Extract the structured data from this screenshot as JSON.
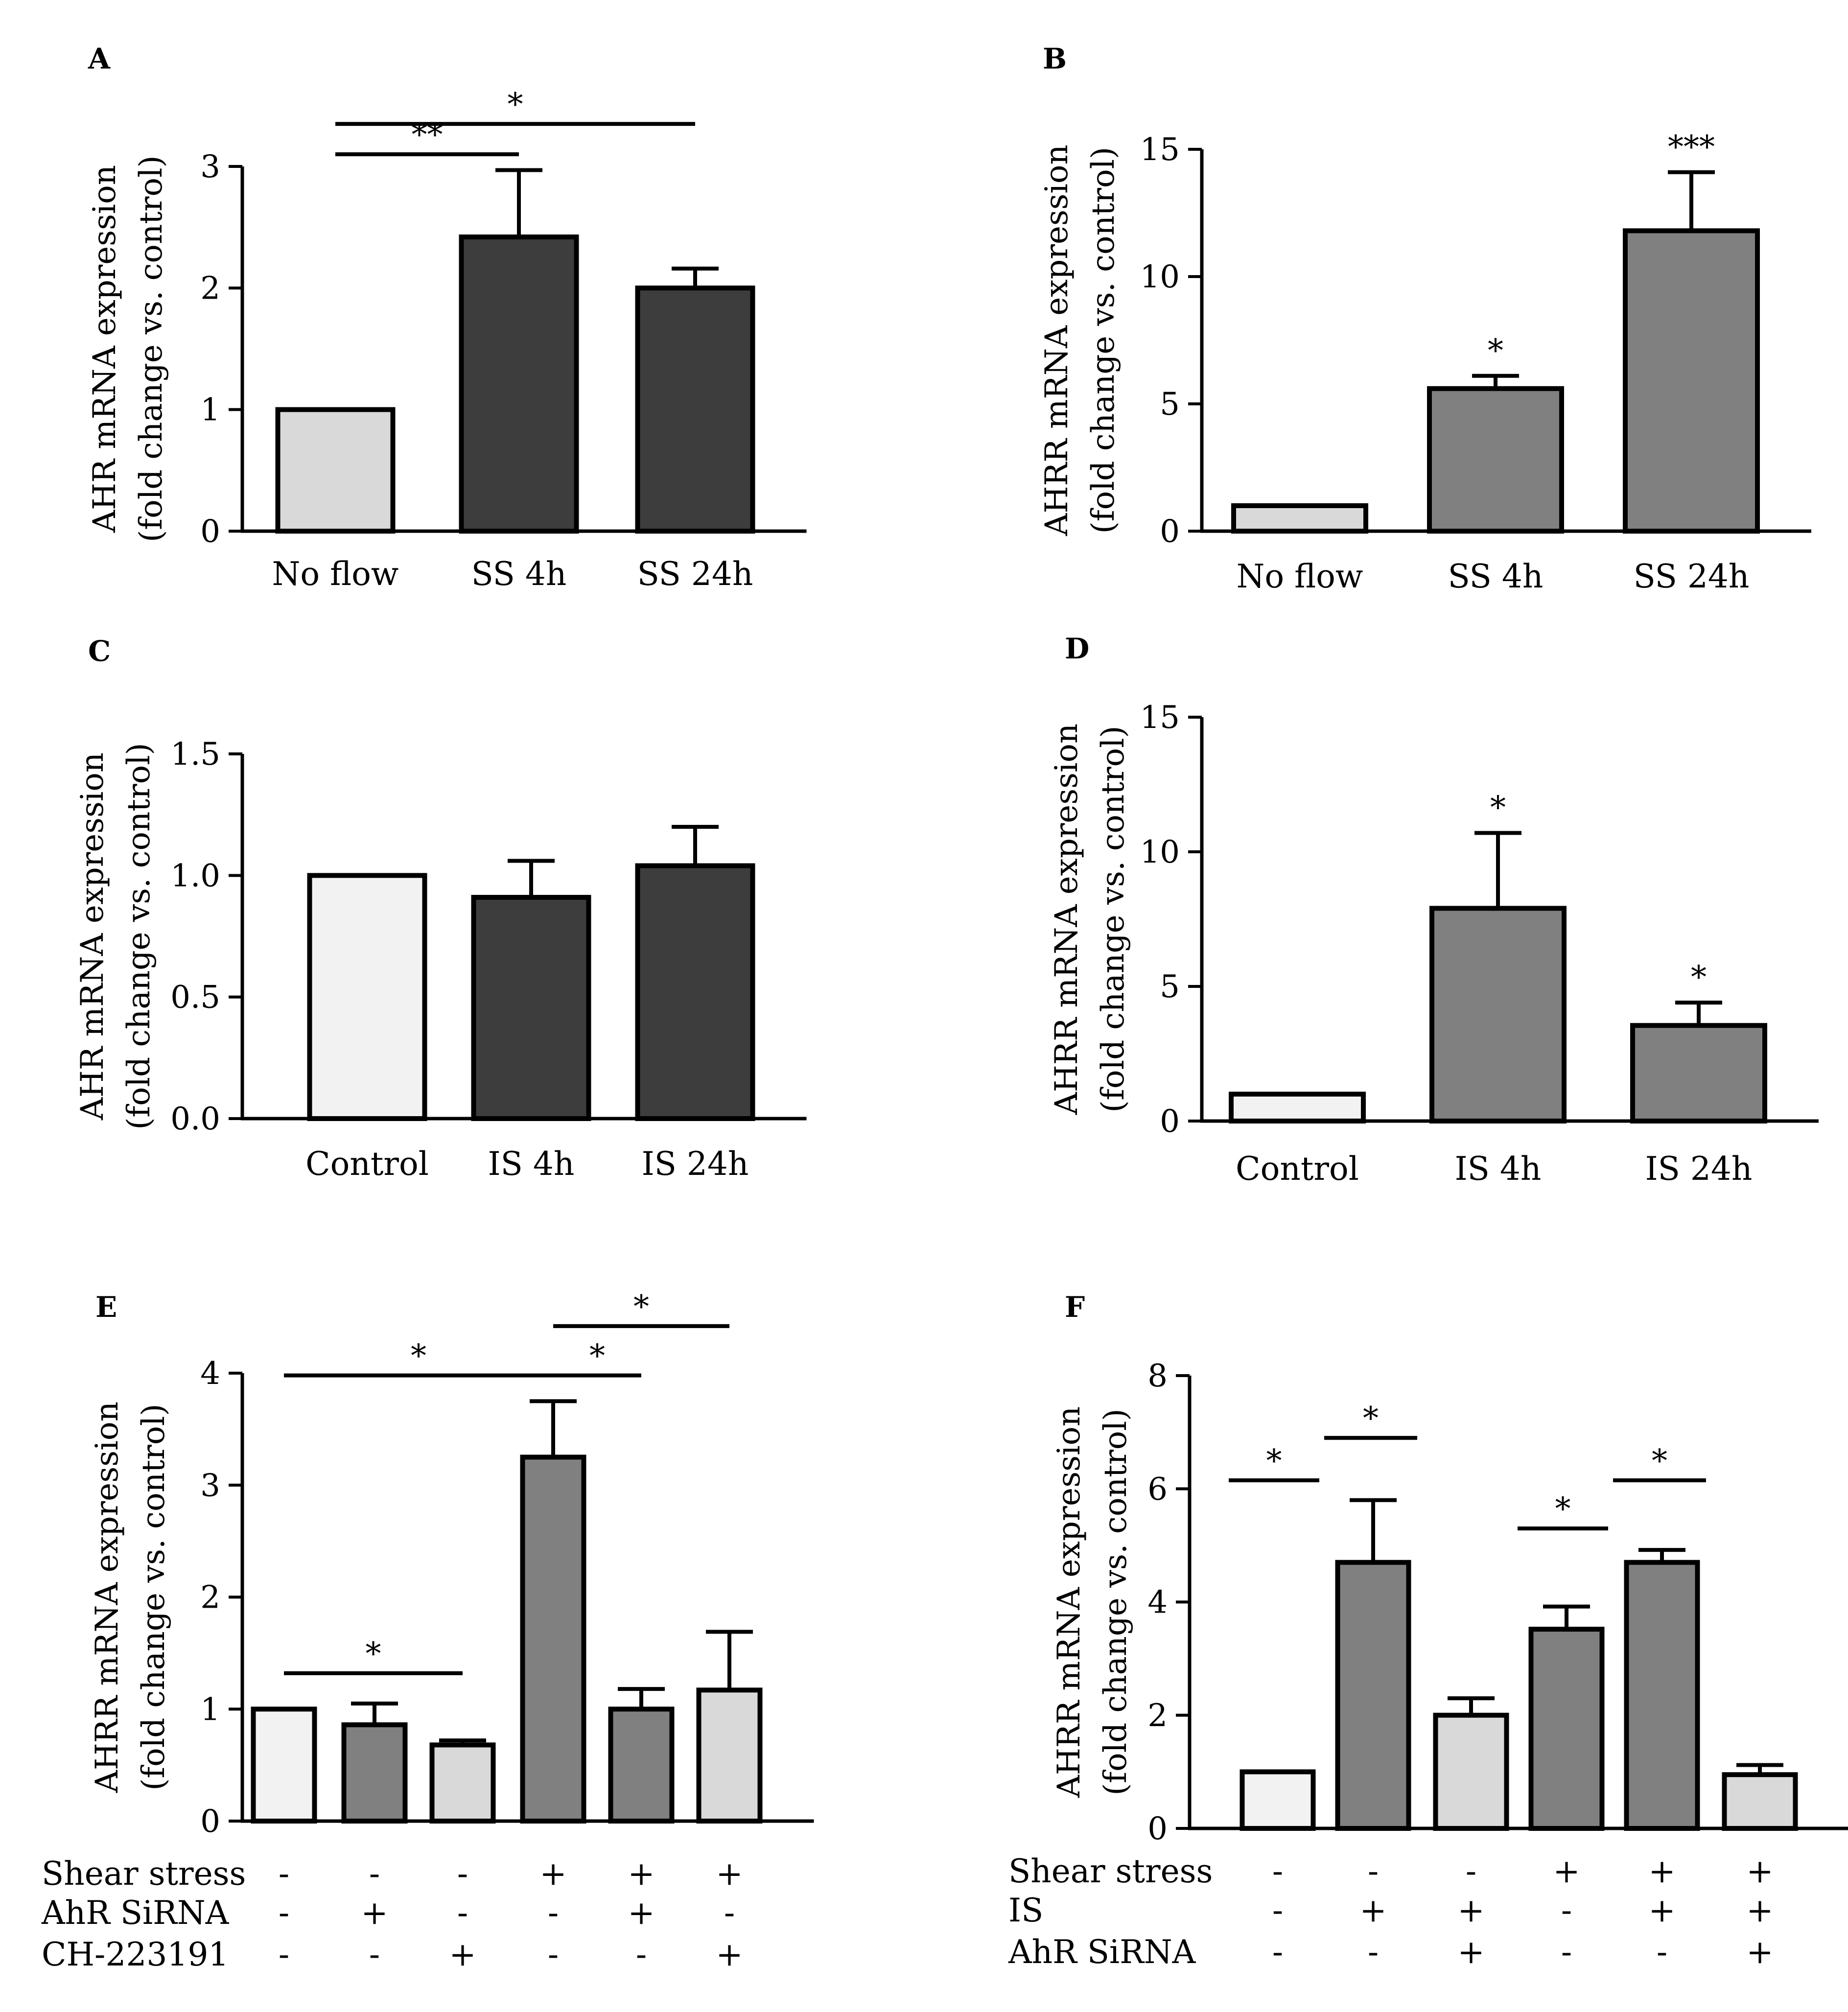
{
  "chart_data": [
    {
      "panel": "A",
      "type": "bar",
      "ylabel": [
        "AHR mRNA expression",
        "(fold change vs. control)"
      ],
      "ylim": [
        0,
        3
      ],
      "yticks": [
        "0",
        "1",
        "2",
        "3"
      ],
      "categories": [
        "No flow",
        "SS 4h",
        "SS 24h"
      ],
      "values": [
        1.0,
        2.42,
        2.0
      ],
      "errors": [
        0,
        0.55,
        0.16
      ],
      "colors": [
        "#d9d9d9",
        "#3d3d3d",
        "#3d3d3d"
      ],
      "bar_stars": [
        "",
        "",
        ""
      ],
      "brackets": [
        {
          "from": 0,
          "to": 1,
          "level": 3.1,
          "label": "**"
        },
        {
          "from": 0,
          "to": 2,
          "level": 3.35,
          "label": "*"
        }
      ]
    },
    {
      "panel": "B",
      "type": "bar",
      "ylabel": [
        "AHRR mRNA expression",
        "(fold change vs. control)"
      ],
      "ylim": [
        0,
        15
      ],
      "yticks": [
        "0",
        "5",
        "10",
        "15"
      ],
      "categories": [
        "No flow",
        "SS 4h",
        "SS 24h"
      ],
      "values": [
        1.0,
        5.6,
        11.8
      ],
      "errors": [
        0,
        0.5,
        2.3
      ],
      "colors": [
        "#d9d9d9",
        "#808080",
        "#808080"
      ],
      "bar_stars": [
        "",
        "*",
        "***"
      ],
      "brackets": []
    },
    {
      "panel": "C",
      "type": "bar",
      "ylabel": [
        "AHR mRNA expression",
        "(fold change vs. control)"
      ],
      "ylim": [
        0,
        1.5
      ],
      "yticks": [
        "0.0",
        "0.5",
        "1.0",
        "1.5"
      ],
      "categories": [
        "Control",
        "IS 4h",
        "IS 24h"
      ],
      "values": [
        1.0,
        0.91,
        1.04
      ],
      "errors": [
        0,
        0.15,
        0.16
      ],
      "colors": [
        "#f2f2f2",
        "#3d3d3d",
        "#3d3d3d"
      ],
      "bar_stars": [
        "",
        "",
        ""
      ],
      "brackets": []
    },
    {
      "panel": "D",
      "type": "bar",
      "ylabel": [
        "AHRR mRNA expression",
        "(fold change vs. control)"
      ],
      "ylim": [
        0,
        15
      ],
      "yticks": [
        "0",
        "5",
        "10",
        "15"
      ],
      "categories": [
        "Control",
        "IS 4h",
        "IS 24h"
      ],
      "values": [
        1.0,
        7.9,
        3.55
      ],
      "errors": [
        0,
        2.8,
        0.85
      ],
      "colors": [
        "#f2f2f2",
        "#808080",
        "#808080"
      ],
      "bar_stars": [
        "",
        "*",
        "*"
      ],
      "brackets": []
    },
    {
      "panel": "E",
      "type": "bar",
      "ylabel": [
        "AHRR mRNA expression",
        "(fold change vs. control)"
      ],
      "ylim": [
        0,
        4
      ],
      "yticks": [
        "0",
        "1",
        "2",
        "3",
        "4"
      ],
      "categories": [
        "",
        "",
        "",
        "",
        "",
        ""
      ],
      "values": [
        1.0,
        0.86,
        0.68,
        3.25,
        1.0,
        1.17
      ],
      "errors": [
        0,
        0.19,
        0.04,
        0.5,
        0.18,
        0.52
      ],
      "colors": [
        "#f2f2f2",
        "#808080",
        "#d9d9d9",
        "#808080",
        "#808080",
        "#d9d9d9"
      ],
      "bar_stars": [
        "",
        "",
        "",
        "",
        "",
        ""
      ],
      "brackets": [
        {
          "from": 0,
          "to": 3,
          "level": 3.98,
          "label": "*"
        },
        {
          "from": 3,
          "to": 4,
          "level": 3.98,
          "label": "*"
        },
        {
          "from": 3,
          "to": 5,
          "level": 4.42,
          "label": "*"
        },
        {
          "from": 0,
          "to": 2,
          "level": 1.32,
          "label": "*"
        }
      ],
      "conditions": [
        {
          "label": "Shear stress",
          "signs": [
            "-",
            "-",
            "-",
            "+",
            "+",
            "+"
          ]
        },
        {
          "label": "AhR SiRNA",
          "signs": [
            "-",
            "+",
            "-",
            "-",
            "+",
            "-"
          ]
        },
        {
          "label": "CH-223191",
          "signs": [
            "-",
            "-",
            "+",
            "-",
            "-",
            "+"
          ]
        }
      ]
    },
    {
      "panel": "F",
      "type": "bar",
      "ylabel": [
        "AHRR mRNA expression",
        "(fold change vs. control)"
      ],
      "ylim": [
        0,
        8
      ],
      "yticks": [
        "0",
        "2",
        "4",
        "6",
        "8"
      ],
      "categories": [
        "",
        "",
        "",
        "",
        "",
        ""
      ],
      "values": [
        1.0,
        4.7,
        2.0,
        3.52,
        4.7,
        0.95
      ],
      "errors": [
        0,
        1.1,
        0.3,
        0.4,
        0.22,
        0.17
      ],
      "colors": [
        "#f2f2f2",
        "#808080",
        "#d9d9d9",
        "#808080",
        "#808080",
        "#d9d9d9"
      ],
      "bar_stars": [
        "",
        "",
        "",
        "",
        "",
        ""
      ],
      "brackets": [
        {
          "from": 0,
          "to": 1,
          "level": 6.15,
          "label": "*",
          "short": true
        },
        {
          "from": 1,
          "to": 2,
          "level": 6.9,
          "label": "*",
          "short": true
        },
        {
          "from": 3,
          "to": 4,
          "level": 5.3,
          "label": "*",
          "short": true
        },
        {
          "from": 4,
          "to": 5,
          "level": 6.15,
          "label": "*",
          "short": true
        }
      ],
      "conditions": [
        {
          "label": "Shear stress",
          "signs": [
            "-",
            "-",
            "-",
            "+",
            "+",
            "+"
          ]
        },
        {
          "label": "IS",
          "signs": [
            "-",
            "+",
            "+",
            "-",
            "+",
            "+"
          ]
        },
        {
          "label": "AhR SiRNA",
          "signs": [
            "-",
            "-",
            "+",
            "-",
            "-",
            "+"
          ]
        }
      ]
    }
  ]
}
